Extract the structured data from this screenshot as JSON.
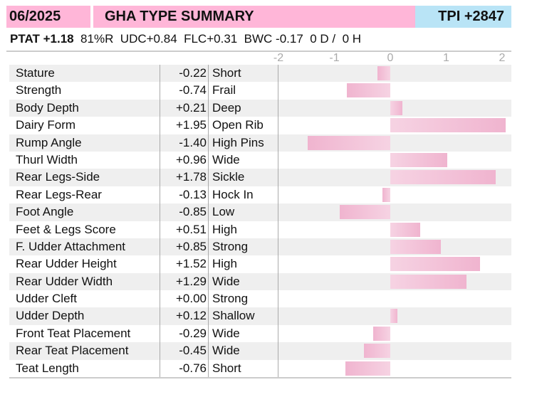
{
  "header": {
    "date": "06/2025",
    "title": "GHA TYPE SUMMARY",
    "tpi": "TPI +2847"
  },
  "subheader": {
    "ptat": "PTAT +1.18",
    "rest": "  81%R  UDC+0.84  FLC+0.31  BWC -0.17  0 D /  0 H"
  },
  "colors": {
    "header": "#ffb6d8",
    "tpi": "#b9e4f6",
    "bar": "#f0b4cf"
  },
  "chart_data": {
    "type": "bar",
    "orientation": "horizontal",
    "xlim": [
      -2,
      2
    ],
    "ticks": [
      "-2",
      "-1",
      "0",
      "1",
      "2"
    ],
    "rows": [
      {
        "trait": "Stature",
        "value": -0.22,
        "label": "-0.22",
        "desc": "Short"
      },
      {
        "trait": "Strength",
        "value": -0.74,
        "label": "-0.74",
        "desc": "Frail"
      },
      {
        "trait": "Body Depth",
        "value": 0.21,
        "label": "+0.21",
        "desc": "Deep"
      },
      {
        "trait": "Dairy Form",
        "value": 1.95,
        "label": "+1.95",
        "desc": "Open Rib"
      },
      {
        "trait": "Rump Angle",
        "value": -1.4,
        "label": "-1.40",
        "desc": "High Pins"
      },
      {
        "trait": "Thurl Width",
        "value": 0.96,
        "label": "+0.96",
        "desc": "Wide"
      },
      {
        "trait": "Rear Legs-Side",
        "value": 1.78,
        "label": "+1.78",
        "desc": "Sickle"
      },
      {
        "trait": "Rear Legs-Rear",
        "value": -0.13,
        "label": "-0.13",
        "desc": "Hock In"
      },
      {
        "trait": "Foot Angle",
        "value": -0.85,
        "label": "-0.85",
        "desc": "Low"
      },
      {
        "trait": "Feet & Legs Score",
        "value": 0.51,
        "label": "+0.51",
        "desc": "High"
      },
      {
        "trait": "F. Udder Attachment",
        "value": 0.85,
        "label": "+0.85",
        "desc": "Strong"
      },
      {
        "trait": "Rear Udder Height",
        "value": 1.52,
        "label": "+1.52",
        "desc": "High"
      },
      {
        "trait": "Rear Udder Width",
        "value": 1.29,
        "label": "+1.29",
        "desc": "Wide"
      },
      {
        "trait": "Udder Cleft",
        "value": 0.0,
        "label": "+0.00",
        "desc": "Strong"
      },
      {
        "trait": "Udder Depth",
        "value": 0.12,
        "label": "+0.12",
        "desc": "Shallow"
      },
      {
        "trait": "Front Teat Placement",
        "value": -0.29,
        "label": "-0.29",
        "desc": "Wide"
      },
      {
        "trait": "Rear Teat Placement",
        "value": -0.45,
        "label": "-0.45",
        "desc": "Wide"
      },
      {
        "trait": "Teat Length",
        "value": -0.76,
        "label": "-0.76",
        "desc": "Short"
      }
    ]
  }
}
